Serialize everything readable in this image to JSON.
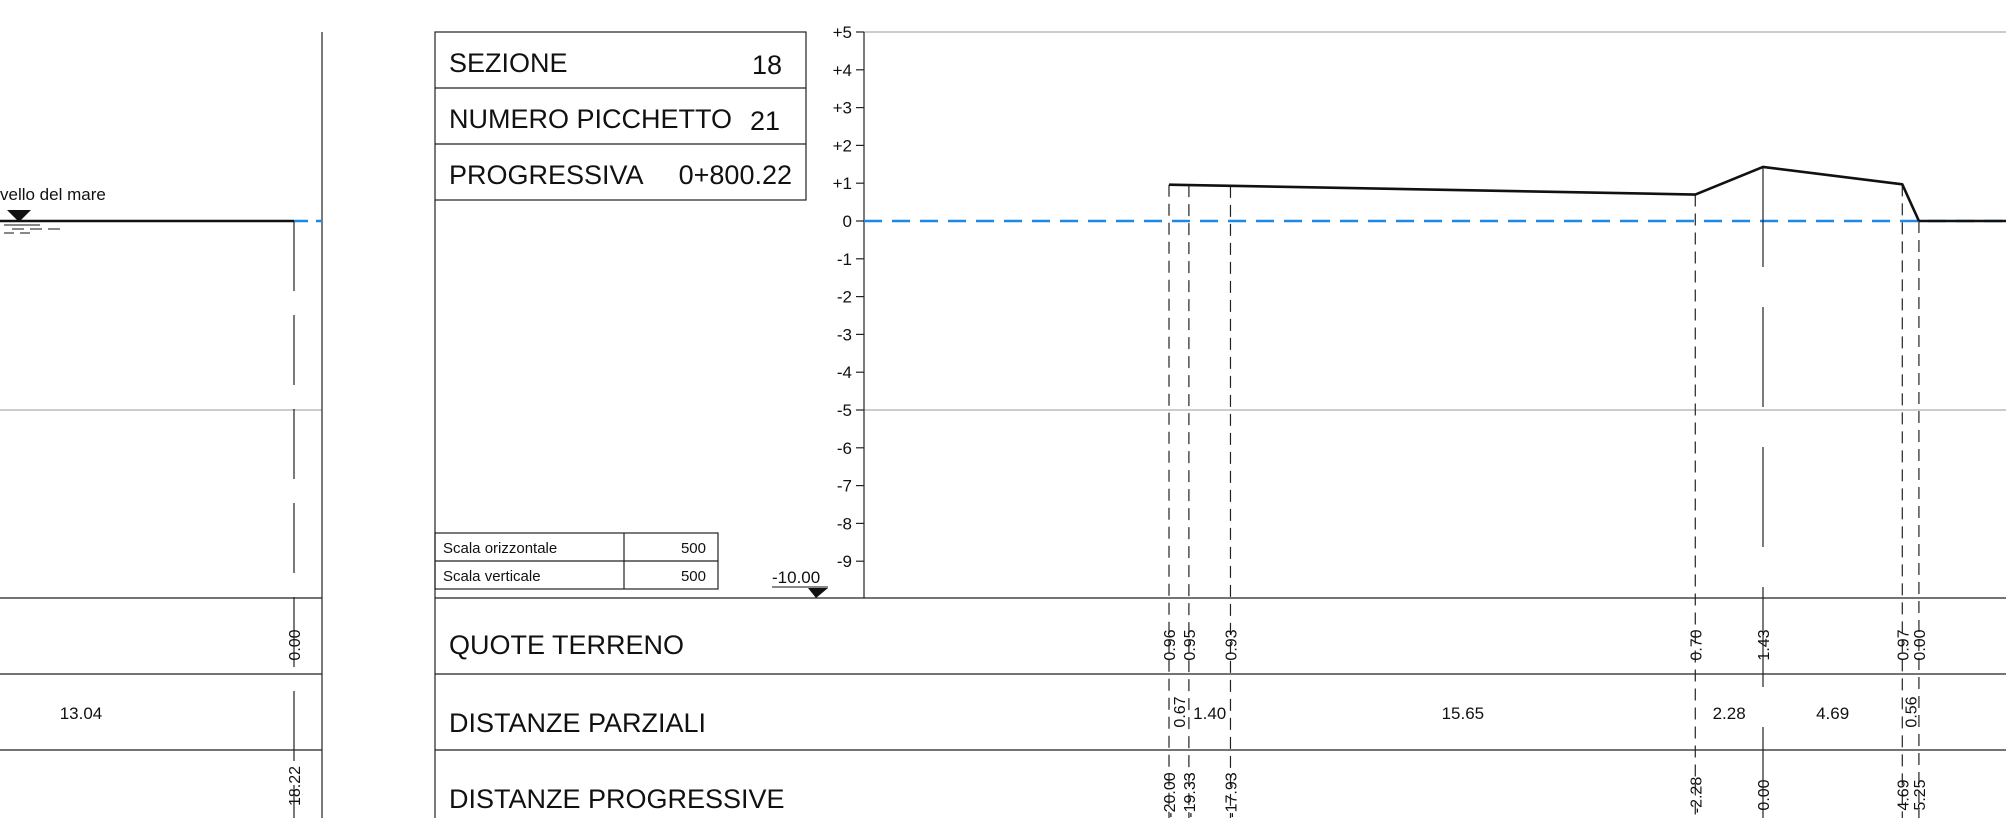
{
  "left_section": {
    "sea_level_label": "vello del mare",
    "partial_distance": "13.04",
    "terrain_value": "0.00",
    "progressive_value": "18.22"
  },
  "info_box": {
    "rows": [
      {
        "label": "SEZIONE",
        "value": "18"
      },
      {
        "label": "NUMERO PICCHETTO",
        "value": "21"
      },
      {
        "label": "PROGRESSIVA",
        "value": "0+800.22"
      }
    ]
  },
  "scale_box": {
    "rows": [
      {
        "label": "Scala orizzontale",
        "value": "500"
      },
      {
        "label": "Scala verticale",
        "value": "500"
      }
    ]
  },
  "datum_label": "-10.00",
  "y_axis_ticks": [
    "+5",
    "+4",
    "+3",
    "+2",
    "+1",
    "0",
    "-1",
    "-2",
    "-3",
    "-4",
    "-5",
    "-6",
    "-7",
    "-8",
    "-9"
  ],
  "band_labels": {
    "quote": "QUOTE TERRENO",
    "parziali": "DISTANZE PARZIALI",
    "progressive": "DISTANZE PROGRESSIVE"
  },
  "chart_data": {
    "type": "line",
    "description_units": "x = progressive distance (m, offset from axis), y = elevation (m)",
    "ylim": [
      -10,
      5
    ],
    "water_level": 0,
    "profile": [
      {
        "x": -20.0,
        "y": 0.96
      },
      {
        "x": -19.33,
        "y": 0.95
      },
      {
        "x": -17.93,
        "y": 0.93
      },
      {
        "x": -2.28,
        "y": 0.7
      },
      {
        "x": 0.0,
        "y": 1.43
      },
      {
        "x": 4.69,
        "y": 0.97
      },
      {
        "x": 5.25,
        "y": 0.0
      }
    ],
    "quote_terreno": [
      "0.96",
      "0.95",
      "0.93",
      "0.70",
      "1.43",
      "0.97",
      "0.00"
    ],
    "distanze_progressive": [
      "-20.00",
      "-19.33",
      "-17.93",
      "-2.28",
      "0.00",
      "4.69",
      "5.25"
    ],
    "distanze_parziali": [
      "0.67",
      "1.40",
      "15.65",
      "2.28",
      "4.69",
      "0.56"
    ]
  }
}
